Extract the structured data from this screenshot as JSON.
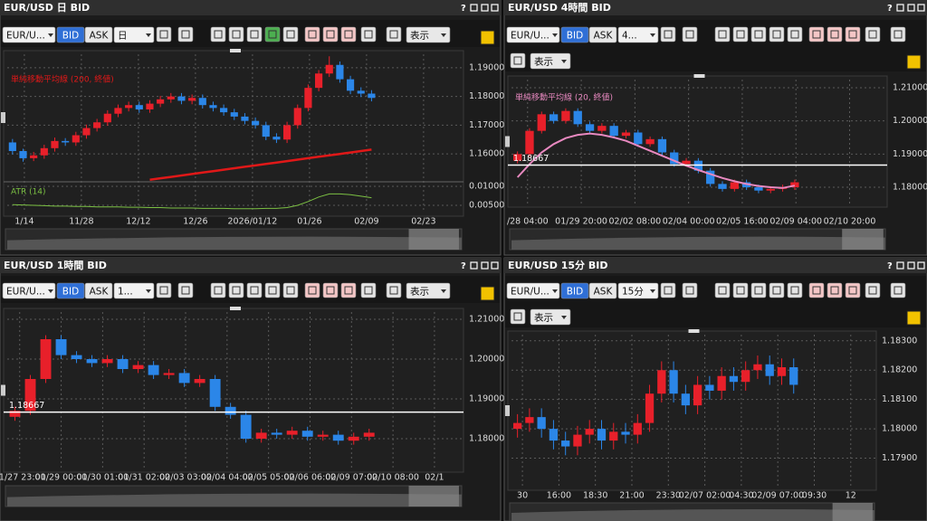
{
  "panels": [
    {
      "title": "EUR/USD 日 BID",
      "help": "?",
      "toolbar": {
        "pair": "EUR/U...",
        "bid": "BID",
        "ask": "ASK",
        "timeframe": "日",
        "display": "表示"
      },
      "chart": {
        "type": "candlestick",
        "up_color": "#e8202a",
        "down_color": "#2b86e8",
        "ylim": [
          1.1506,
          1.1947
        ],
        "yticks": [
          {
            "value": 1.19,
            "label": "1.19000"
          },
          {
            "value": 1.18,
            "label": "1.18000"
          },
          {
            "value": 1.17,
            "label": "1.17000"
          },
          {
            "value": 1.16,
            "label": "1.16000"
          }
        ],
        "xticks": [
          "1/14",
          "11/28",
          "12/12",
          "12/26",
          "2026/01/12",
          "01/26",
          "02/09",
          "02/23"
        ],
        "candles": [
          [
            1.164,
            1.1652,
            1.1598,
            1.161
          ],
          [
            1.161,
            1.1618,
            1.1573,
            1.1585
          ],
          [
            1.1585,
            1.1607,
            1.1575,
            1.1595
          ],
          [
            1.1595,
            1.1632,
            1.1583,
            1.162
          ],
          [
            1.162,
            1.1657,
            1.1608,
            1.1645
          ],
          [
            1.1645,
            1.1655,
            1.1628,
            1.164
          ],
          [
            1.164,
            1.1677,
            1.1628,
            1.1665
          ],
          [
            1.1665,
            1.1702,
            1.1653,
            1.169
          ],
          [
            1.169,
            1.1722,
            1.1678,
            1.171
          ],
          [
            1.171,
            1.1752,
            1.1698,
            1.174
          ],
          [
            1.174,
            1.1772,
            1.1728,
            1.176
          ],
          [
            1.176,
            1.1782,
            1.1748,
            1.177
          ],
          [
            1.177,
            1.1782,
            1.1743,
            1.1755
          ],
          [
            1.1755,
            1.1787,
            1.1743,
            1.1775
          ],
          [
            1.1775,
            1.1802,
            1.1763,
            1.179
          ],
          [
            1.179,
            1.1812,
            1.1778,
            1.18
          ],
          [
            1.18,
            1.1812,
            1.1773,
            1.1785
          ],
          [
            1.1785,
            1.1807,
            1.1773,
            1.1795
          ],
          [
            1.1795,
            1.1807,
            1.1758,
            1.177
          ],
          [
            1.177,
            1.1782,
            1.1748,
            1.176
          ],
          [
            1.176,
            1.1772,
            1.1733,
            1.1745
          ],
          [
            1.1745,
            1.1757,
            1.1718,
            1.173
          ],
          [
            1.173,
            1.1742,
            1.1703,
            1.1715
          ],
          [
            1.1715,
            1.1727,
            1.1688,
            1.17
          ],
          [
            1.17,
            1.1712,
            1.1648,
            1.166
          ],
          [
            1.166,
            1.1672,
            1.1638,
            1.165
          ],
          [
            1.165,
            1.1712,
            1.1638,
            1.17
          ],
          [
            1.17,
            1.1772,
            1.1688,
            1.176
          ],
          [
            1.176,
            1.1842,
            1.1748,
            1.183
          ],
          [
            1.183,
            1.1892,
            1.1818,
            1.188
          ],
          [
            1.188,
            1.194,
            1.1868,
            1.191
          ],
          [
            1.191,
            1.1922,
            1.1848,
            1.186
          ],
          [
            1.186,
            1.1872,
            1.1808,
            1.182
          ],
          [
            1.182,
            1.1832,
            1.1798,
            1.181
          ],
          [
            1.181,
            1.1822,
            1.1783,
            1.1795
          ]
        ],
        "ma": {
          "label": "単純移動平均線 (200, 終値)",
          "color": "#e01818",
          "values": [
            null,
            null,
            null,
            null,
            null,
            null,
            null,
            null,
            null,
            null,
            null,
            null,
            null,
            1.151,
            1.1515,
            1.152,
            1.1525,
            1.153,
            1.1535,
            1.154,
            1.1545,
            1.155,
            1.1555,
            1.156,
            1.1565,
            1.157,
            1.1575,
            1.158,
            1.1585,
            1.159,
            1.1595,
            1.16,
            1.1605,
            1.161,
            1.1615
          ]
        },
        "atr": {
          "label": "ATR (14)",
          "color": "#7bc043",
          "ylim": [
            0.0031,
            0.01095
          ],
          "yticks": [
            {
              "value": 0.01,
              "label": "0.01000"
            },
            {
              "value": 0.005,
              "label": "0.00500"
            }
          ],
          "values": [
            0.0052,
            0.0051,
            0.005,
            0.0049,
            0.0048,
            0.0048,
            0.0047,
            0.0047,
            0.0046,
            0.0046,
            0.0046,
            0.0045,
            0.0045,
            0.0044,
            0.0044,
            0.0043,
            0.0043,
            0.0043,
            0.0042,
            0.0042,
            0.0042,
            0.0041,
            0.0041,
            0.0041,
            0.0042,
            0.0042,
            0.0044,
            0.005,
            0.006,
            0.0072,
            0.008,
            0.008,
            0.0078,
            0.0074,
            0.007
          ]
        }
      }
    },
    {
      "title": "EUR/USD 4時間 BID",
      "help": "?",
      "toolbar": {
        "pair": "EUR/U...",
        "bid": "BID",
        "ask": "ASK",
        "timeframe": "4...",
        "display": "表示"
      },
      "chart": {
        "type": "candlestick",
        "up_color": "#e8202a",
        "down_color": "#2b86e8",
        "ylim": [
          1.1751,
          1.21245
        ],
        "yticks": [
          {
            "value": 1.21,
            "label": "1.21000"
          },
          {
            "value": 1.2,
            "label": "1.20000"
          },
          {
            "value": 1.19,
            "label": "1.19000"
          },
          {
            "value": 1.18,
            "label": "1.18000"
          }
        ],
        "xticks": [
          "/28 04:00",
          "01/29 20:00",
          "02/02 08:00",
          "02/04 00:00",
          "02/05 16:00",
          "02/09 04:00",
          "02/10 20:00"
        ],
        "hline": 1.18667,
        "candles": [
          [
            1.188,
            1.1908,
            1.1872,
            1.19
          ],
          [
            1.19,
            1.1978,
            1.1892,
            1.197
          ],
          [
            1.197,
            1.2028,
            1.1962,
            1.202
          ],
          [
            1.202,
            1.2028,
            1.1992,
            1.2
          ],
          [
            1.2,
            1.2038,
            1.1992,
            1.203
          ],
          [
            1.203,
            1.2038,
            1.1982,
            1.199
          ],
          [
            1.199,
            1.1998,
            1.1962,
            1.197
          ],
          [
            1.197,
            1.1993,
            1.1962,
            1.1985
          ],
          [
            1.1985,
            1.1993,
            1.1947,
            1.1955
          ],
          [
            1.1955,
            1.1973,
            1.1947,
            1.1965
          ],
          [
            1.1965,
            1.1973,
            1.1922,
            1.193
          ],
          [
            1.193,
            1.1953,
            1.1922,
            1.1945
          ],
          [
            1.1945,
            1.1953,
            1.1897,
            1.1905
          ],
          [
            1.1905,
            1.1913,
            1.1862,
            1.187
          ],
          [
            1.187,
            1.1888,
            1.1862,
            1.188
          ],
          [
            1.188,
            1.1888,
            1.1842,
            1.185
          ],
          [
            1.185,
            1.1858,
            1.1802,
            1.181
          ],
          [
            1.181,
            1.1818,
            1.1787,
            1.1795
          ],
          [
            1.1795,
            1.1823,
            1.1787,
            1.1815
          ],
          [
            1.1815,
            1.1823,
            1.1792,
            1.18
          ],
          [
            1.18,
            1.1808,
            1.1782,
            1.179
          ],
          [
            1.179,
            1.1803,
            1.1782,
            1.1795
          ],
          [
            1.1795,
            1.1808,
            1.1787,
            1.18
          ],
          [
            1.18,
            1.1823,
            1.1792,
            1.1815
          ]
        ],
        "ma": {
          "label": "単純移動平均線 (20, 終値)",
          "color": "#e889c0",
          "values": [
            1.183,
            1.187,
            1.1905,
            1.193,
            1.1948,
            1.1958,
            1.1962,
            1.1958,
            1.195,
            1.194,
            1.1925,
            1.191,
            1.1895,
            1.188,
            1.1865,
            1.1852,
            1.184,
            1.1828,
            1.1818,
            1.181,
            1.1804,
            1.18,
            1.1798,
            1.1805
          ]
        }
      }
    },
    {
      "title": "EUR/USD 1時間 BID",
      "help": "?",
      "toolbar": {
        "pair": "EUR/U...",
        "bid": "BID",
        "ask": "ASK",
        "timeframe": "1...",
        "display": "表示"
      },
      "chart": {
        "type": "candlestick",
        "up_color": "#e8202a",
        "down_color": "#2b86e8",
        "ylim": [
          1.1725,
          1.21182
        ],
        "yticks": [
          {
            "value": 1.21,
            "label": "1.21000"
          },
          {
            "value": 1.2,
            "label": "1.20000"
          },
          {
            "value": 1.19,
            "label": "1.19000"
          },
          {
            "value": 1.18,
            "label": "1.18000"
          }
        ],
        "xticks": [
          "01/27 23:00",
          "01/29 00:00",
          "01/30 01:00",
          "01/31 02:00",
          "02/03 03:00",
          "02/04 04:00",
          "02/05 05:00",
          "02/06 06:00",
          "02/09 07:00",
          "02/10 08:00",
          "02/1"
        ],
        "hline": 1.18667,
        "candles": [
          [
            1.1855,
            1.188,
            1.1845,
            1.187
          ],
          [
            1.187,
            1.196,
            1.186,
            1.195
          ],
          [
            1.195,
            1.206,
            1.194,
            1.205
          ],
          [
            1.205,
            1.206,
            1.2,
            1.201
          ],
          [
            1.201,
            1.202,
            1.199,
            1.2
          ],
          [
            1.2,
            1.201,
            1.198,
            1.199
          ],
          [
            1.199,
            1.201,
            1.198,
            1.2
          ],
          [
            1.2,
            1.201,
            1.1965,
            1.1975
          ],
          [
            1.1975,
            1.1995,
            1.1965,
            1.1985
          ],
          [
            1.1985,
            1.1995,
            1.195,
            1.196
          ],
          [
            1.196,
            1.1975,
            1.195,
            1.1965
          ],
          [
            1.1965,
            1.1975,
            1.193,
            1.194
          ],
          [
            1.194,
            1.196,
            1.193,
            1.195
          ],
          [
            1.195,
            1.196,
            1.187,
            1.188
          ],
          [
            1.188,
            1.189,
            1.185,
            1.186
          ],
          [
            1.186,
            1.187,
            1.179,
            1.18
          ],
          [
            1.18,
            1.1825,
            1.179,
            1.1815
          ],
          [
            1.1815,
            1.1825,
            1.18,
            1.181
          ],
          [
            1.181,
            1.183,
            1.18,
            1.182
          ],
          [
            1.182,
            1.183,
            1.1795,
            1.1805
          ],
          [
            1.1805,
            1.182,
            1.1795,
            1.181
          ],
          [
            1.181,
            1.182,
            1.1785,
            1.1795
          ],
          [
            1.1795,
            1.1815,
            1.1785,
            1.1805
          ],
          [
            1.1805,
            1.1825,
            1.1795,
            1.1815
          ]
        ]
      }
    },
    {
      "title": "EUR/USD 15分 BID",
      "help": "?",
      "toolbar": {
        "pair": "EUR/U...",
        "bid": "BID",
        "ask": "ASK",
        "timeframe": "15分",
        "display": "表示"
      },
      "chart": {
        "type": "candlestick",
        "up_color": "#e8202a",
        "down_color": "#2b86e8",
        "ylim": [
          1.17803,
          1.18321
        ],
        "yticks": [
          {
            "value": 1.183,
            "label": "1.18300"
          },
          {
            "value": 1.182,
            "label": "1.18200"
          },
          {
            "value": 1.181,
            "label": "1.18100"
          },
          {
            "value": 1.18,
            "label": "1.18000"
          },
          {
            "value": 1.179,
            "label": "1.17900"
          }
        ],
        "xticks": [
          "30",
          "16:00",
          "18:30",
          "21:00",
          "23:30",
          "02/07 02:00",
          "04:30",
          "02/09 07:00",
          "09:30",
          "12"
        ],
        "candles": [
          [
            1.18,
            1.1805,
            1.1797,
            1.1802
          ],
          [
            1.1802,
            1.1807,
            1.1799,
            1.1804
          ],
          [
            1.1804,
            1.1807,
            1.1797,
            1.18
          ],
          [
            1.18,
            1.1803,
            1.1793,
            1.1796
          ],
          [
            1.1796,
            1.1799,
            1.1791,
            1.1794
          ],
          [
            1.1794,
            1.1801,
            1.1791,
            1.1798
          ],
          [
            1.1798,
            1.1803,
            1.1795,
            1.18
          ],
          [
            1.18,
            1.1803,
            1.1793,
            1.1796
          ],
          [
            1.1796,
            1.1802,
            1.1793,
            1.1799
          ],
          [
            1.1799,
            1.1802,
            1.1795,
            1.1798
          ],
          [
            1.1798,
            1.1805,
            1.1795,
            1.1802
          ],
          [
            1.1802,
            1.1815,
            1.1799,
            1.1812
          ],
          [
            1.1812,
            1.1823,
            1.1809,
            1.182
          ],
          [
            1.182,
            1.1823,
            1.1809,
            1.1812
          ],
          [
            1.1812,
            1.1815,
            1.1805,
            1.1808
          ],
          [
            1.1808,
            1.1818,
            1.1805,
            1.1815
          ],
          [
            1.1815,
            1.1818,
            1.181,
            1.1813
          ],
          [
            1.1813,
            1.1821,
            1.181,
            1.1818
          ],
          [
            1.1818,
            1.1821,
            1.1813,
            1.1816
          ],
          [
            1.1816,
            1.1823,
            1.1813,
            1.182
          ],
          [
            1.182,
            1.1825,
            1.1817,
            1.1822
          ],
          [
            1.1822,
            1.1825,
            1.1815,
            1.1818
          ],
          [
            1.1818,
            1.1824,
            1.1815,
            1.1821
          ],
          [
            1.1821,
            1.1824,
            1.1812,
            1.1815
          ]
        ]
      }
    }
  ]
}
